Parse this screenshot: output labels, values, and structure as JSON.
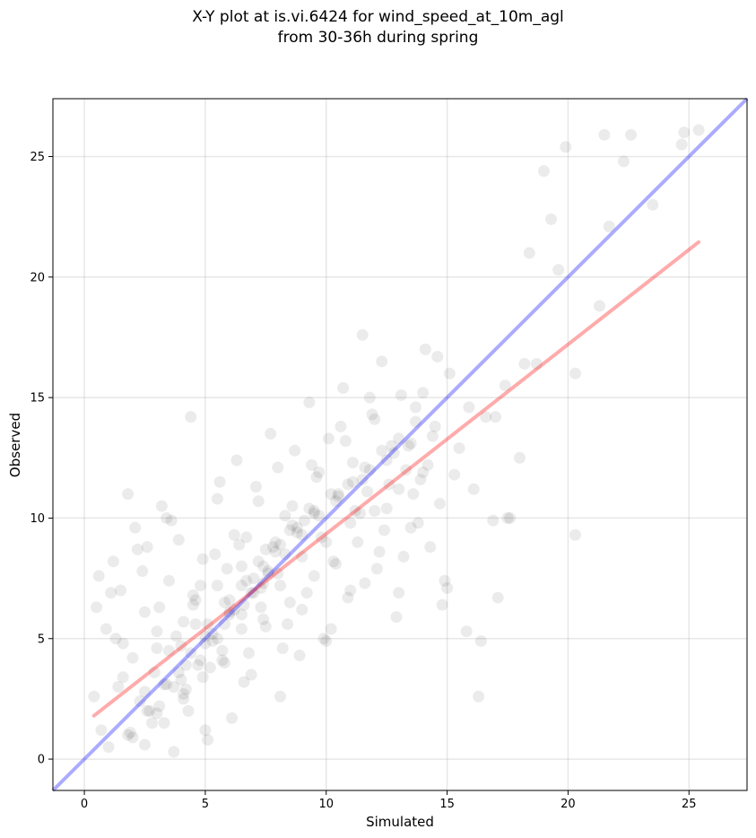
{
  "chart_data": {
    "type": "scatter",
    "title_line1": "X-Y plot at is.vi.6424 for wind_speed_at_10m_agl",
    "title_line2": "from 30-36h during spring",
    "xlabel": "Simulated",
    "ylabel": "Observed",
    "xlim": [
      -1.3,
      27.4
    ],
    "ylim": [
      -1.3,
      27.4
    ],
    "xticks": [
      0,
      5,
      10,
      15,
      20,
      25
    ],
    "yticks": [
      0,
      5,
      10,
      15,
      20,
      25
    ],
    "grid": true,
    "point_color": "#000000",
    "point_alpha": 0.08,
    "identity_line": {
      "x": [
        -1.3,
        27.4
      ],
      "y": [
        -1.3,
        27.4
      ],
      "color": "#0000ff",
      "alpha": 0.33
    },
    "fit_line": {
      "x": [
        0.4,
        25.4
      ],
      "y": [
        1.8,
        21.45
      ],
      "color": "#ff0000",
      "alpha": 0.33
    },
    "points_x": [
      0.4,
      0.5,
      0.6,
      0.7,
      0.9,
      1.0,
      1.2,
      1.4,
      1.5,
      1.6,
      1.8,
      2.0,
      2.1,
      2.3,
      2.5,
      2.6,
      2.8,
      3.0,
      3.2,
      3.3,
      3.5,
      3.7,
      3.9,
      4.1,
      4.3,
      4.5,
      4.7,
      4.9,
      5.1,
      5.3,
      5.5,
      5.7,
      5.9,
      6.1,
      6.3,
      6.5,
      6.7,
      6.9,
      7.1,
      7.3,
      7.5,
      7.7,
      7.9,
      8.1,
      8.3,
      8.5,
      8.7,
      8.9,
      9.1,
      9.3,
      9.5,
      9.7,
      9.9,
      10.1,
      10.3,
      10.5,
      10.7,
      10.9,
      11.1,
      11.3,
      11.5,
      11.7,
      11.9,
      12.1,
      12.3,
      12.5,
      12.7,
      12.9,
      13.1,
      13.3,
      13.5,
      13.7,
      13.9,
      14.1,
      14.3,
      14.5,
      14.7,
      14.9,
      15.1,
      15.5,
      15.8,
      16.1,
      16.3,
      16.6,
      16.9,
      17.1,
      17.4,
      17.6,
      18.0,
      18.4,
      18.7,
      19.0,
      19.3,
      19.6,
      19.9,
      20.3,
      20.3,
      21.3,
      21.5,
      21.7,
      22.3,
      22.6,
      23.5,
      24.7,
      24.8,
      25.4,
      1.1,
      1.6,
      2.2,
      2.7,
      3.1,
      3.6,
      4.0,
      4.4,
      4.8,
      5.2,
      5.6,
      6.0,
      6.4,
      6.8,
      7.2,
      7.6,
      8.0,
      8.4,
      8.8,
      9.2,
      9.6,
      10.0,
      10.4,
      10.8,
      11.2,
      11.6,
      12.0,
      12.4,
      12.8,
      13.2,
      13.6,
      14.0,
      14.4,
      14.8,
      15.3,
      15.9,
      16.4,
      17.0,
      17.5,
      18.2,
      1.3,
      1.9,
      2.4,
      2.9,
      3.4,
      3.8,
      4.2,
      4.6,
      5.0,
      5.4,
      5.8,
      6.2,
      6.6,
      7.0,
      7.4,
      7.8,
      8.2,
      8.6,
      9.0,
      9.4,
      9.8,
      10.2,
      10.6,
      11.0,
      11.4,
      11.8,
      12.2,
      12.6,
      13.0,
      13.4,
      13.8,
      14.2,
      14.6,
      15.0,
      2.0,
      2.5,
      3.0,
      3.5,
      4.0,
      4.5,
      5.0,
      5.5,
      6.0,
      6.5,
      7.0,
      7.5,
      8.0,
      8.5,
      9.0,
      9.5,
      10.0,
      10.5,
      11.0,
      11.5,
      12.0,
      12.5,
      13.0,
      13.5,
      14.0,
      3.1,
      3.9,
      4.6,
      5.3,
      6.0,
      6.7,
      7.4,
      8.1,
      8.8,
      9.5,
      10.2,
      10.9,
      11.6,
      12.3,
      13.0,
      13.7,
      4.1,
      4.8,
      5.5,
      6.2,
      6.9,
      7.6,
      8.3,
      9.0,
      9.7,
      10.4,
      11.1,
      11.8,
      3.0,
      3.7,
      4.4,
      5.1,
      5.8,
      6.5,
      7.2,
      7.9,
      8.6,
      9.3,
      2.5,
      3.3,
      4.1,
      4.9,
      5.7,
      6.5,
      7.3,
      8.1,
      1.8,
      2.6,
      3.4,
      4.2,
      5.0,
      5.8,
      6.6,
      7.4
    ],
    "points_y": [
      2.6,
      6.3,
      7.6,
      1.2,
      5.4,
      0.5,
      8.2,
      3.0,
      7.0,
      4.8,
      11.0,
      0.9,
      9.6,
      2.4,
      6.1,
      8.8,
      1.5,
      4.6,
      10.5,
      3.1,
      7.4,
      0.3,
      9.1,
      5.7,
      2.0,
      6.8,
      3.9,
      8.3,
      0.8,
      5.2,
      10.8,
      4.1,
      7.9,
      1.7,
      12.4,
      6.0,
      9.2,
      3.5,
      11.3,
      7.1,
      5.5,
      13.5,
      8.6,
      2.6,
      10.1,
      6.5,
      12.8,
      4.3,
      9.9,
      14.8,
      7.6,
      11.9,
      5.0,
      13.3,
      8.2,
      10.9,
      15.4,
      6.7,
      12.3,
      9.0,
      17.6,
      11.1,
      14.3,
      7.9,
      16.5,
      10.4,
      13.0,
      5.9,
      15.1,
      12.0,
      9.6,
      14.6,
      11.6,
      17.0,
      8.8,
      13.8,
      10.6,
      7.4,
      16.0,
      12.9,
      5.3,
      11.2,
      2.6,
      14.2,
      9.9,
      6.7,
      15.5,
      10.0,
      12.5,
      21.0,
      16.4,
      24.4,
      22.4,
      20.3,
      25.4,
      16.0,
      9.3,
      18.8,
      25.9,
      22.1,
      24.8,
      25.9,
      23.0,
      25.5,
      26.0,
      26.1,
      6.9,
      3.4,
      8.7,
      2.0,
      6.3,
      9.9,
      4.7,
      14.2,
      7.2,
      3.8,
      11.5,
      6.1,
      8.9,
      4.4,
      10.7,
      7.7,
      12.1,
      5.6,
      9.4,
      6.9,
      11.7,
      4.9,
      8.1,
      13.2,
      10.3,
      7.3,
      14.1,
      9.5,
      12.7,
      8.4,
      11.0,
      15.2,
      13.4,
      6.4,
      11.8,
      14.6,
      4.9,
      14.2,
      10.0,
      16.4,
      5.0,
      1.1,
      7.8,
      3.6,
      10.0,
      5.1,
      2.9,
      6.6,
      1.2,
      8.5,
      4.0,
      9.3,
      3.2,
      7.5,
      5.8,
      8.8,
      4.6,
      10.5,
      6.2,
      12.2,
      9.2,
      5.4,
      13.8,
      7.0,
      10.2,
      15.0,
      8.6,
      11.4,
      6.9,
      13.0,
      9.8,
      12.2,
      16.7,
      7.1,
      4.2,
      2.8,
      5.3,
      4.5,
      3.3,
      6.4,
      5.1,
      7.2,
      6.0,
      8.0,
      6.9,
      8.7,
      7.7,
      9.5,
      8.4,
      10.3,
      9.0,
      11.0,
      9.8,
      11.6,
      10.3,
      12.4,
      11.2,
      13.1,
      11.9,
      2.2,
      3.6,
      5.6,
      4.9,
      6.6,
      7.4,
      8.0,
      8.9,
      9.6,
      10.2,
      11.0,
      11.4,
      12.1,
      12.8,
      13.3,
      14.0,
      2.7,
      4.1,
      5.0,
      6.2,
      6.9,
      7.8,
      8.5,
      9.3,
      10.1,
      10.7,
      11.5,
      12.0,
      1.9,
      3.0,
      4.4,
      5.6,
      6.5,
      7.2,
      8.2,
      9.0,
      9.7,
      10.4,
      0.6,
      1.5,
      2.5,
      3.4,
      4.5,
      5.4,
      6.3,
      7.2,
      1.0,
      2.0,
      3.1,
      3.9,
      4.8,
      5.6,
      6.4,
      7.3
    ]
  }
}
